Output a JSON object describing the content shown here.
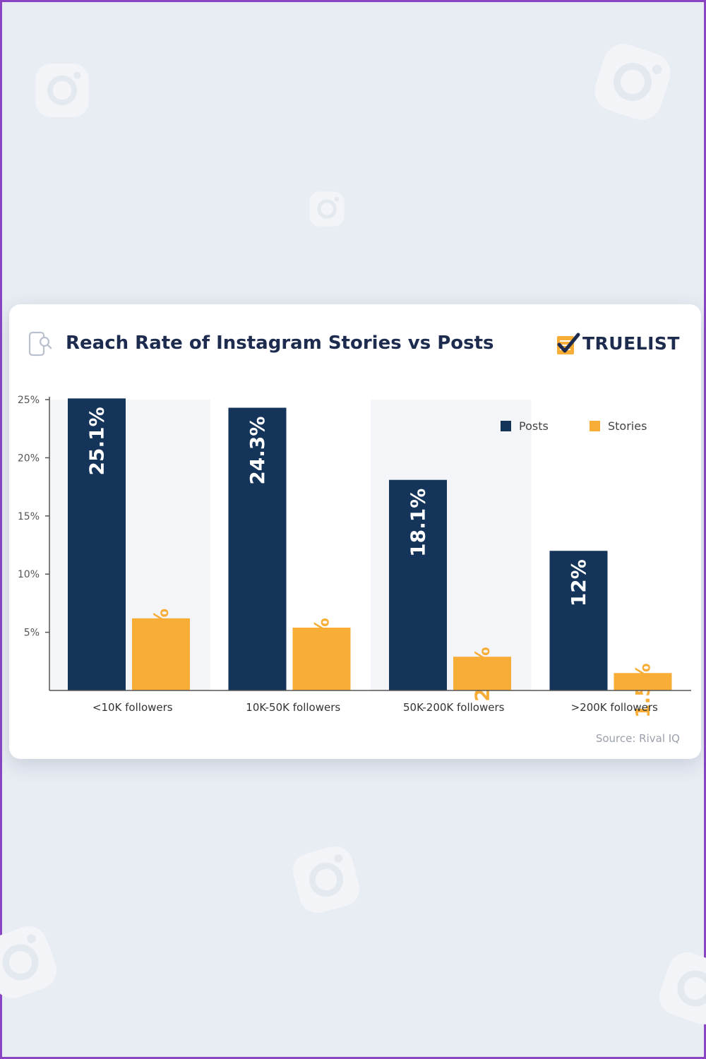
{
  "card": {
    "title": "Reach Rate of Instagram Stories vs Posts",
    "brand": "TRUELIST",
    "source": "Source: Rival IQ"
  },
  "icons": {
    "title_icon": "phone-search-icon",
    "brand_icon": "checklist-check-icon",
    "background_icon": "instagram-camera-icon"
  },
  "colors": {
    "posts": "#143459",
    "stories": "#f8ad37",
    "band": "#f3f5f9",
    "axis": "#555555",
    "tick_text": "#555555",
    "background": "#e8ecf3",
    "border": "#8a45c4"
  },
  "chart_data": {
    "type": "bar",
    "title": "Reach Rate of Instagram Stories vs Posts",
    "categories": [
      "<10K followers",
      "10K-50K followers",
      "50K-200K followers",
      ">200K followers"
    ],
    "series": [
      {
        "name": "Posts",
        "values": [
          25.1,
          24.3,
          18.1,
          12
        ],
        "labels": [
          "25.1%",
          "24.3%",
          "18.1%",
          "12%"
        ]
      },
      {
        "name": "Stories",
        "values": [
          6.2,
          5.4,
          2.9,
          1.5
        ],
        "labels": [
          "6.2%",
          "5.4%",
          "2.9%",
          "1.5%"
        ]
      }
    ],
    "yticks": [
      5,
      10,
      15,
      20,
      25
    ],
    "ytick_labels": [
      "5%",
      "10%",
      "15%",
      "20%",
      "25%"
    ],
    "ylim": [
      0,
      25
    ],
    "xlabel": "",
    "ylabel": "",
    "legend": {
      "position": "top-right",
      "entries": [
        "Posts",
        "Stories"
      ]
    },
    "grid": false,
    "value_labels_rotated": true
  }
}
